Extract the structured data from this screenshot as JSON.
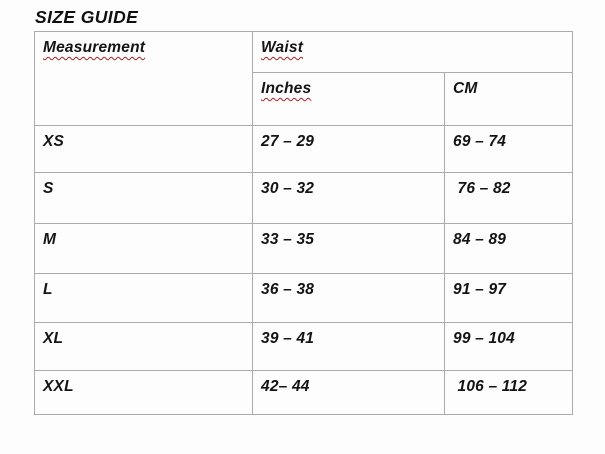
{
  "page_title": "SIZE GUIDE",
  "colors": {
    "background": "#fdfdfd",
    "text": "#141414",
    "table_border": "#ababab",
    "spellcheck_squiggle": "#a92020"
  },
  "table": {
    "header": {
      "measurement": "Measurement",
      "waist": "Waist",
      "inches": "Inches",
      "cm": "CM"
    },
    "misspelled_words": [
      "Measurement",
      "Waist",
      "Inches"
    ],
    "rows": [
      {
        "size": "XS",
        "inches": "27 – 29",
        "cm": "69 – 74"
      },
      {
        "size": "S",
        "inches": "30 – 32",
        "cm": " 76 – 82"
      },
      {
        "size": "M",
        "inches": "33 – 35",
        "cm": "84 – 89"
      },
      {
        "size": "L",
        "inches": "36 – 38",
        "cm": "91 – 97"
      },
      {
        "size": "XL",
        "inches": "39 – 41",
        "cm": "99 – 104"
      },
      {
        "size": "XXL",
        "inches": "42– 44",
        "cm": " 106 – 112"
      }
    ]
  }
}
